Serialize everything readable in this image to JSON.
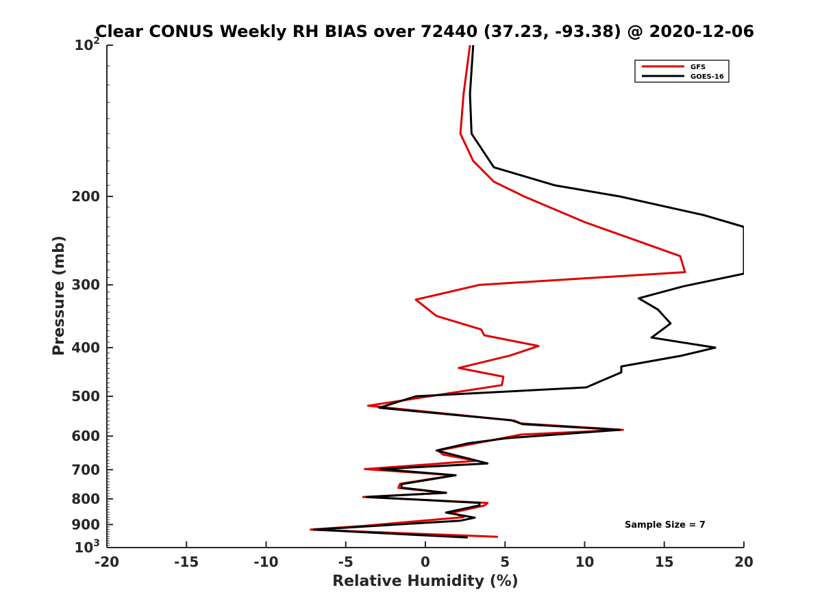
{
  "chart_data": {
    "type": "line",
    "title": "Clear CONUS Weekly RH BIAS over 72440 (37.23, -93.38) @ 2020-12-06",
    "xlabel": "Relative Humidity (%)",
    "ylabel": "Pressure (mb)",
    "xlim": [
      -20,
      20
    ],
    "ylim": [
      100,
      1000
    ],
    "y_scale": "log",
    "y_reversed": true,
    "grid": false,
    "legend_position": "top-right",
    "x_ticks": [
      "-20",
      "-15",
      "-10",
      "-5",
      "0",
      "5",
      "10",
      "15",
      "20"
    ],
    "x_tick_values": [
      -20,
      -15,
      -10,
      -5,
      0,
      5,
      10,
      15,
      20
    ],
    "y_ticks": [
      {
        "value": 100,
        "base": "10",
        "exp": "2"
      },
      {
        "value": 200,
        "label": "200"
      },
      {
        "value": 300,
        "label": "300"
      },
      {
        "value": 400,
        "label": "400"
      },
      {
        "value": 500,
        "label": "500"
      },
      {
        "value": 600,
        "label": "600"
      },
      {
        "value": 700,
        "label": "700"
      },
      {
        "value": 800,
        "label": "800"
      },
      {
        "value": 900,
        "label": "900"
      },
      {
        "value": 1000,
        "base": "10",
        "exp": "3"
      }
    ],
    "annotation": "Sample Size = 7",
    "series": [
      {
        "name": "GFS",
        "color": "#e00000",
        "points": [
          [
            2.8,
            100
          ],
          [
            2.4,
            125
          ],
          [
            2.2,
            150
          ],
          [
            3.0,
            170
          ],
          [
            4.3,
            187
          ],
          [
            6.2,
            200
          ],
          [
            10.0,
            225
          ],
          [
            16.0,
            263
          ],
          [
            16.3,
            283
          ],
          [
            3.4,
            300
          ],
          [
            -0.6,
            321
          ],
          [
            0.7,
            346
          ],
          [
            3.5,
            368
          ],
          [
            3.7,
            378
          ],
          [
            7.1,
            397
          ],
          [
            5.3,
            415
          ],
          [
            2.1,
            439
          ],
          [
            4.9,
            457
          ],
          [
            4.8,
            475
          ],
          [
            -3.6,
            522
          ],
          [
            5.6,
            559
          ],
          [
            6.0,
            566
          ],
          [
            12.4,
            583
          ],
          [
            6.0,
            596
          ],
          [
            0.8,
            641
          ],
          [
            1.1,
            653
          ],
          [
            3.2,
            672
          ],
          [
            -3.8,
            698
          ],
          [
            1.8,
            718
          ],
          [
            -1.6,
            747
          ],
          [
            -1.7,
            761
          ],
          [
            1.3,
            778
          ],
          [
            -3.9,
            793
          ],
          [
            3.9,
            815
          ],
          [
            3.7,
            825
          ],
          [
            1.7,
            852
          ],
          [
            2.4,
            870
          ],
          [
            0.4,
            881
          ],
          [
            -3.8,
            905
          ],
          [
            -7.2,
            921
          ],
          [
            4.5,
            952
          ]
        ]
      },
      {
        "name": "GOES-16",
        "color": "#000000",
        "points": [
          [
            3.0,
            100
          ],
          [
            2.8,
            125
          ],
          [
            2.9,
            150
          ],
          [
            4.3,
            175
          ],
          [
            8.1,
            190
          ],
          [
            12.2,
            200
          ],
          [
            17.5,
            218
          ],
          [
            20.0,
            230
          ],
          [
            20.0,
            285
          ],
          [
            16.2,
            302
          ],
          [
            13.4,
            319
          ],
          [
            14.6,
            336
          ],
          [
            15.4,
            358
          ],
          [
            14.2,
            382
          ],
          [
            18.2,
            400
          ],
          [
            16.1,
            415
          ],
          [
            12.3,
            436
          ],
          [
            12.3,
            448
          ],
          [
            10.1,
            480
          ],
          [
            -0.6,
            500
          ],
          [
            -2.9,
            527
          ],
          [
            5.4,
            558
          ],
          [
            6.1,
            568
          ],
          [
            12.2,
            583
          ],
          [
            5.1,
            606
          ],
          [
            2.7,
            620
          ],
          [
            0.7,
            641
          ],
          [
            3.9,
            680
          ],
          [
            -2.8,
            698
          ],
          [
            1.9,
            718
          ],
          [
            -1.5,
            748
          ],
          [
            -1.5,
            760
          ],
          [
            1.3,
            778
          ],
          [
            -3.7,
            793
          ],
          [
            3.4,
            815
          ],
          [
            3.4,
            824
          ],
          [
            1.3,
            852
          ],
          [
            3.1,
            872
          ],
          [
            2.2,
            884
          ],
          [
            -7.0,
            921
          ],
          [
            2.6,
            955
          ]
        ]
      }
    ]
  }
}
